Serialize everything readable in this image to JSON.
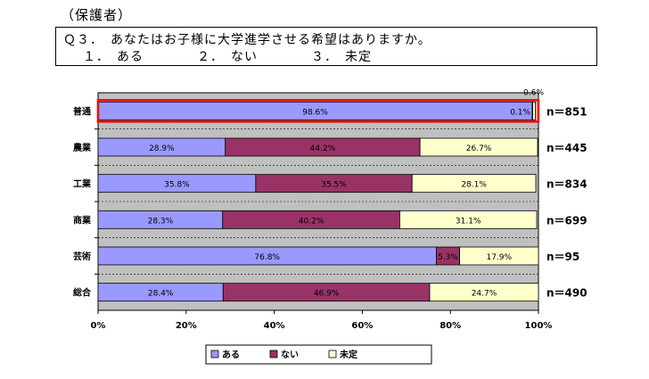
{
  "header": {
    "heading": "（保護者）",
    "question": "Ｑ３．　あなたはお子様に大学進学させる希望はありますか。",
    "options_line": "１．　ある　　　　２．　ない　　　　３．　未定"
  },
  "chart_data": {
    "type": "bar",
    "orientation": "horizontal",
    "stacked": true,
    "categories": [
      "普通",
      "農業",
      "工業",
      "商業",
      "芸術",
      "総合"
    ],
    "n_labels": [
      "n＝851",
      "n＝445",
      "n＝834",
      "n＝699",
      "n＝95",
      "n＝490"
    ],
    "series": [
      {
        "name": "ある",
        "color": "#9999ff",
        "values": [
          98.6,
          28.9,
          35.8,
          28.3,
          76.8,
          28.4
        ],
        "labels": [
          "98.6%",
          "28.9%",
          "35.8%",
          "28.3%",
          "76.8%",
          "28.4%"
        ]
      },
      {
        "name": "ない",
        "color": "#993366",
        "values": [
          0.1,
          44.2,
          35.5,
          40.2,
          5.3,
          46.9
        ],
        "labels": [
          "0.1%",
          "44.2%",
          "35.5%",
          "40.2%",
          "5.3%",
          "46.9%"
        ]
      },
      {
        "name": "未定",
        "color": "#ffffcc",
        "values": [
          0.6,
          26.7,
          28.1,
          31.1,
          17.9,
          24.7
        ],
        "labels": [
          "0.6%",
          "26.7%",
          "28.1%",
          "31.1%",
          "17.9%",
          "24.7%"
        ]
      }
    ],
    "xlim": [
      0,
      100
    ],
    "xticks": [
      "0%",
      "20%",
      "40%",
      "60%",
      "80%",
      "100%"
    ],
    "highlight_category": "普通",
    "highlight_color": "#ff0000",
    "plot_background": "#c0c0c0",
    "legend_position": "bottom"
  }
}
